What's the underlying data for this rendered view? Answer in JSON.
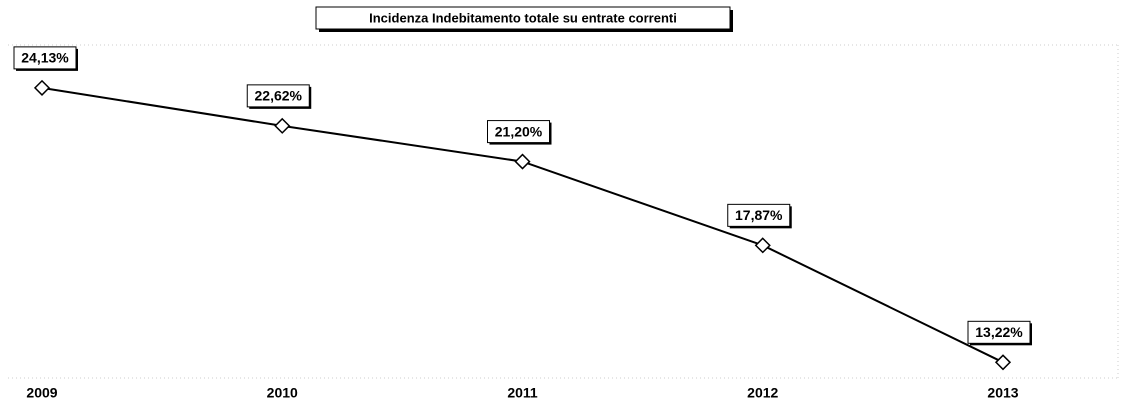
{
  "chart_data": {
    "type": "line",
    "title": "Incidenza Indebitamento totale su entrate correnti",
    "categories": [
      "2009",
      "2010",
      "2011",
      "2012",
      "2013"
    ],
    "values": [
      24.13,
      22.62,
      21.2,
      17.87,
      13.22
    ],
    "value_labels": [
      "24,13%",
      "22,62%",
      "21,20%",
      "17,87%",
      "13,22%"
    ],
    "color": "#000000",
    "ylim": [
      12,
      25
    ]
  }
}
